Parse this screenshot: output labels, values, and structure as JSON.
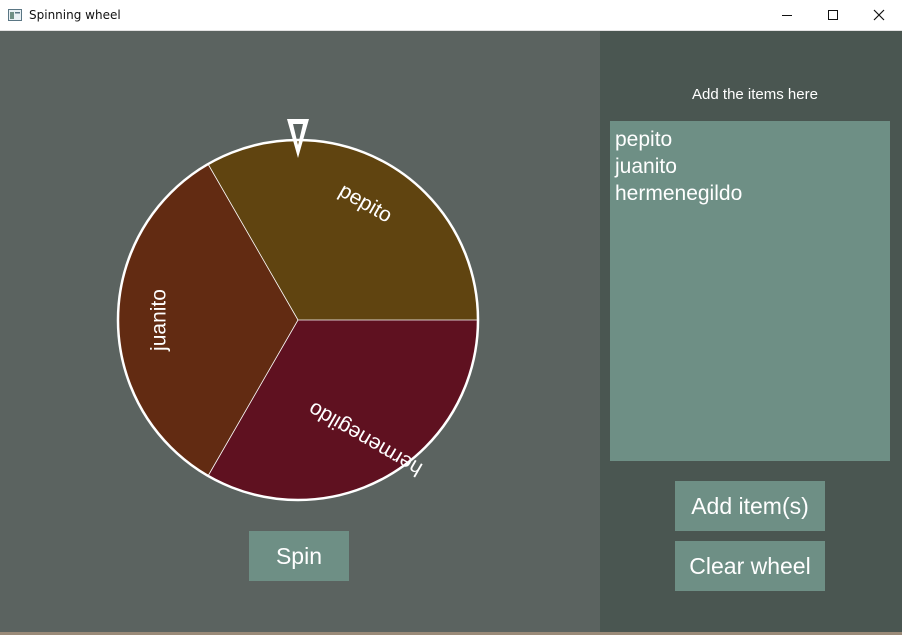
{
  "window": {
    "title": "Spinning wheel"
  },
  "wheel": {
    "segments": [
      {
        "label": "pepito",
        "color": "#604410"
      },
      {
        "label": "juanito",
        "color": "#622b12"
      },
      {
        "label": "hermenegildo",
        "color": "#5f1120"
      }
    ],
    "rim_color": "#ffffff",
    "pointer_color": "#ffffff"
  },
  "panel": {
    "label": "Add the items here",
    "items": [
      "pepito",
      "juanito",
      "hermenegildo"
    ]
  },
  "buttons": {
    "spin": "Spin",
    "add_items": "Add item(s)",
    "clear_wheel": "Clear wheel"
  },
  "colors": {
    "left_bg": "#5b6360",
    "right_bg": "#4a5651",
    "accent": "#6e8f85"
  }
}
